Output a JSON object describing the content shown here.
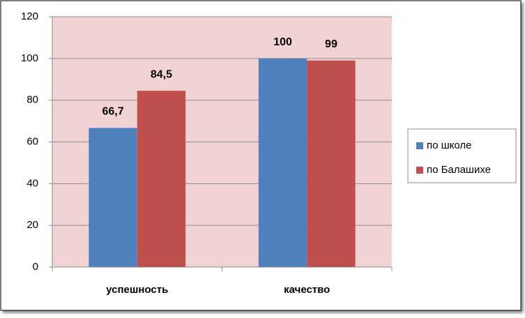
{
  "chart_data": {
    "type": "bar",
    "categories": [
      "успешность",
      "качество"
    ],
    "series": [
      {
        "name": "по школе",
        "color": "#4f81bd",
        "values": [
          66.7,
          100
        ],
        "value_labels": [
          "66,7",
          "100"
        ]
      },
      {
        "name": "по Балашихе",
        "color": "#c0504d",
        "values": [
          84.5,
          99
        ],
        "value_labels": [
          "84,5",
          "99"
        ]
      }
    ],
    "ylim": [
      0,
      120
    ],
    "yticks": [
      0,
      20,
      40,
      60,
      80,
      100,
      120
    ],
    "grid": true,
    "plot_background": "#f2d3d3",
    "legend": "right"
  }
}
